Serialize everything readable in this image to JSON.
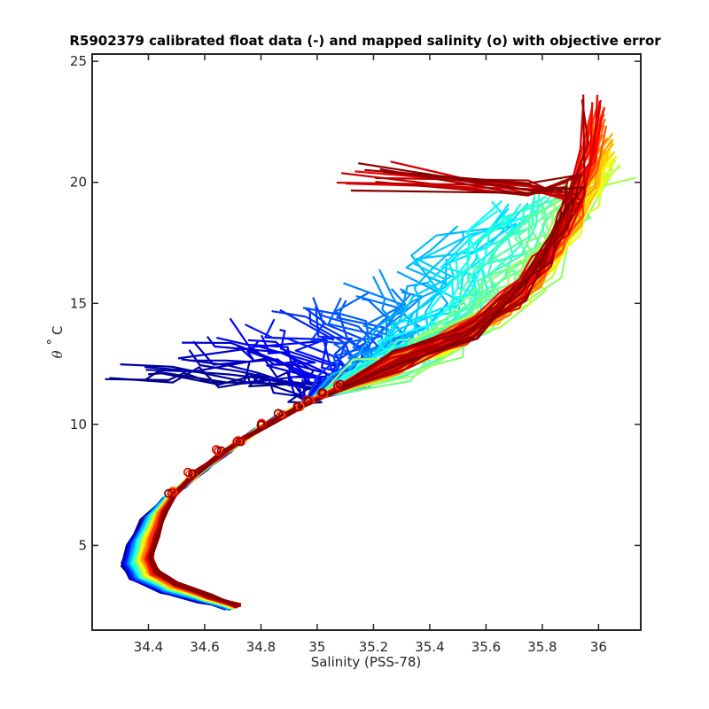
{
  "chart_data": {
    "type": "line",
    "title": "R5902379 calibrated float data (-) and mapped salinity (o) with objective error",
    "xlabel": "Salinity (PSS-78)",
    "ylabel_theta": "θ",
    "ylabel_degree": "°",
    "ylabel_unit": "C",
    "xlim": [
      34.2,
      36.15
    ],
    "ylim": [
      1.5,
      25.3
    ],
    "x_ticks": [
      34.4,
      34.6,
      34.8,
      35,
      35.2,
      35.4,
      35.6,
      35.8,
      36
    ],
    "x_tick_labels": [
      "34.4",
      "34.6",
      "34.8",
      "35",
      "35.2",
      "35.4",
      "35.6",
      "35.8",
      "36"
    ],
    "y_ticks": [
      5,
      10,
      15,
      20,
      25
    ],
    "y_tick_labels": [
      "5",
      "10",
      "15",
      "20",
      "25"
    ],
    "grid": false,
    "legend": "none",
    "colormap": "jet (profile number)",
    "colormap_colors": [
      "#00008f",
      "#0000ff",
      "#0080ff",
      "#00ffff",
      "#80ff80",
      "#ffff00",
      "#ff8000",
      "#ff0000",
      "#800000"
    ],
    "series_summary": [
      {
        "name": "",
        "color_group": "early profiles (blue)",
        "points": [
          [
            34.7,
            2.4
          ],
          [
            34.55,
            2.9
          ],
          [
            34.35,
            3.6
          ],
          [
            34.32,
            4.5
          ],
          [
            34.4,
            6.2
          ],
          [
            34.5,
            7.3
          ],
          [
            34.62,
            8.6
          ],
          [
            34.75,
            9.7
          ],
          [
            34.9,
            10.8
          ],
          [
            35.0,
            11.3
          ],
          [
            34.7,
            11.6
          ],
          [
            34.45,
            11.9
          ]
        ]
      },
      {
        "name": "",
        "color_group": "middle profiles (cyan-green)",
        "points": [
          [
            34.7,
            2.5
          ],
          [
            34.38,
            3.8
          ],
          [
            34.45,
            6.8
          ],
          [
            34.7,
            9.3
          ],
          [
            35.0,
            11.2
          ],
          [
            35.25,
            12.5
          ],
          [
            35.4,
            14.5
          ],
          [
            35.35,
            16.5
          ],
          [
            35.5,
            18.2
          ]
        ]
      },
      {
        "name": "",
        "color_group": "later profiles (yellow-orange)",
        "points": [
          [
            34.7,
            2.5
          ],
          [
            34.42,
            4.1
          ],
          [
            34.48,
            7.0
          ],
          [
            34.75,
            9.8
          ],
          [
            35.1,
            11.6
          ],
          [
            35.5,
            13.4
          ],
          [
            35.7,
            15.5
          ],
          [
            35.9,
            18.0
          ],
          [
            36.05,
            20.6
          ]
        ]
      },
      {
        "name": "",
        "color_group": "last profiles (red-dark red)",
        "points": [
          [
            34.7,
            2.5
          ],
          [
            34.45,
            4.3
          ],
          [
            34.5,
            7.2
          ],
          [
            34.8,
            10.0
          ],
          [
            35.15,
            11.8
          ],
          [
            35.6,
            14.5
          ],
          [
            35.85,
            17.5
          ],
          [
            35.95,
            21.0
          ],
          [
            35.95,
            24.0
          ]
        ]
      }
    ],
    "mapped_salinity_points": [
      [
        34.48,
        7.2
      ],
      [
        34.55,
        8.0
      ],
      [
        34.65,
        8.9
      ],
      [
        34.72,
        9.3
      ],
      [
        34.8,
        10.0
      ],
      [
        34.87,
        10.4
      ],
      [
        34.93,
        10.7
      ],
      [
        34.97,
        11.0
      ],
      [
        35.02,
        11.3
      ],
      [
        35.08,
        11.6
      ]
    ]
  }
}
